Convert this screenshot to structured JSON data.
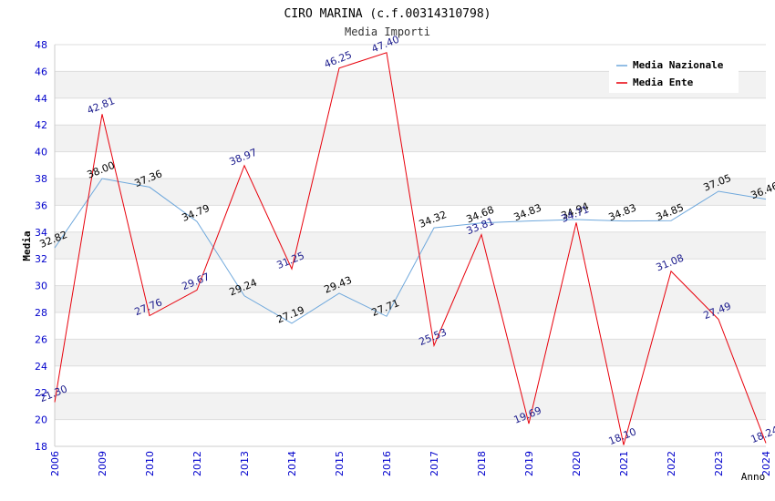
{
  "chart_data": {
    "type": "line",
    "title": "CIRO MARINA (c.f.00314310798)",
    "subtitle": "Media Importi",
    "xlabel": "Anno",
    "ylabel": "Media",
    "ylim": [
      18,
      48
    ],
    "y_ticks": [
      "18",
      "20",
      "22",
      "24",
      "26",
      "28",
      "30",
      "32",
      "34",
      "36",
      "38",
      "40",
      "42",
      "44",
      "46",
      "48"
    ],
    "categories": [
      "2006",
      "2009",
      "2010",
      "2012",
      "2013",
      "2014",
      "2015",
      "2016",
      "2017",
      "2018",
      "2019",
      "2020",
      "2021",
      "2022",
      "2023",
      "2024"
    ],
    "grid": true,
    "legend_position": "top-right",
    "series": [
      {
        "name": "Media Nazionale",
        "color": "#6fa8dc",
        "label_color": "#000000",
        "values": [
          32.82,
          38.0,
          37.36,
          34.79,
          29.24,
          27.19,
          29.43,
          27.71,
          34.32,
          34.68,
          34.83,
          34.94,
          34.83,
          34.85,
          37.05,
          36.46
        ],
        "labels": [
          "32.82",
          "38.00",
          "37.36",
          "34.79",
          "29.24",
          "27.19",
          "29.43",
          "27.71",
          "34.32",
          "34.68",
          "34.83",
          "34.94",
          "34.83",
          "34.85",
          "37.05",
          "36.46"
        ]
      },
      {
        "name": "Media Ente",
        "color": "#e8000b",
        "label_color": "#1a1a8c",
        "values": [
          21.3,
          42.81,
          27.76,
          29.67,
          38.97,
          31.25,
          46.25,
          47.4,
          25.53,
          33.81,
          19.69,
          34.71,
          18.1,
          31.08,
          27.49,
          18.24
        ],
        "labels": [
          "21.30",
          "42.81",
          "27.76",
          "29.67",
          "38.97",
          "31.25",
          "46.25",
          "47.40",
          "25.53",
          "33.81",
          "19.69",
          "34.71",
          "18.10",
          "31.08",
          "27.49",
          "18.24"
        ]
      }
    ]
  }
}
